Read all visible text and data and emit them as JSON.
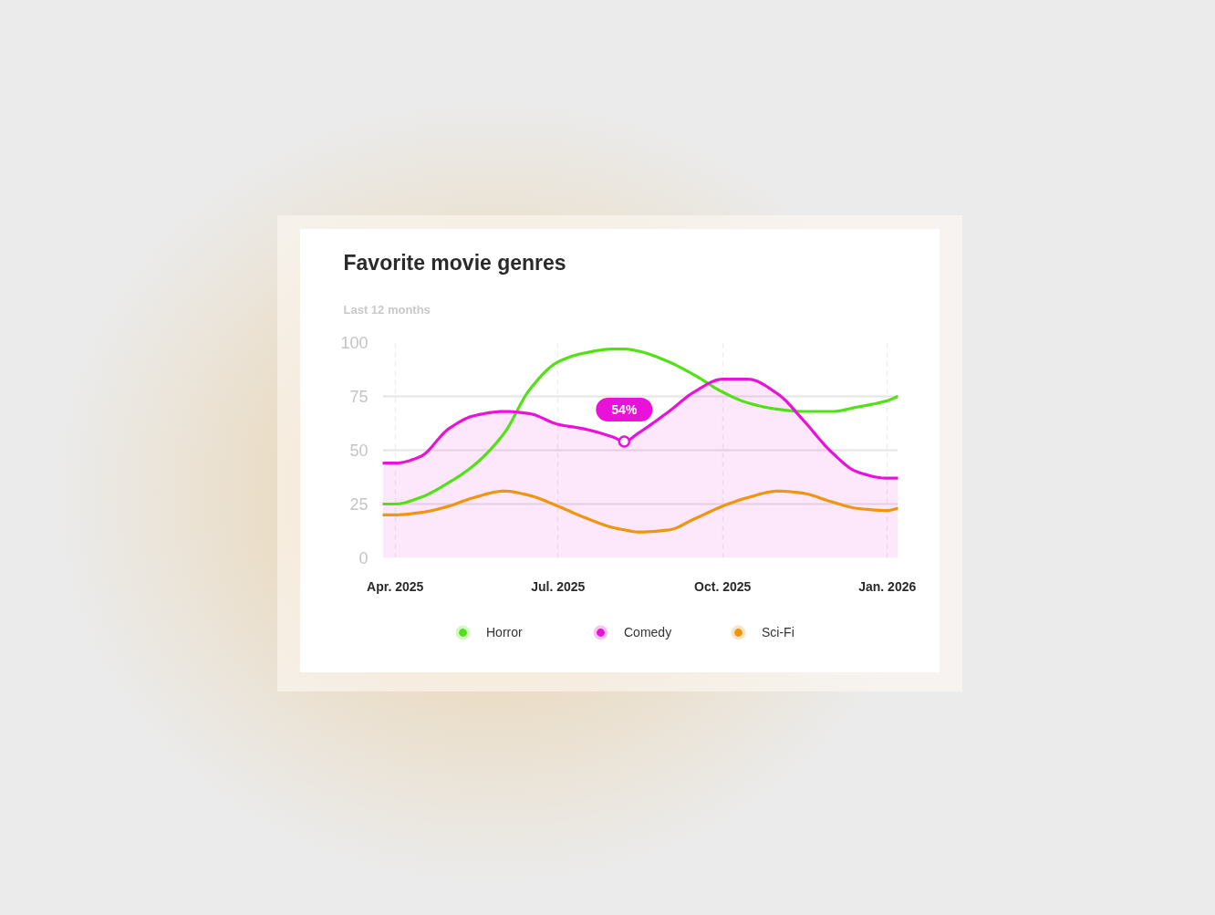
{
  "chart_data": {
    "type": "line",
    "title": "Favorite movie genres",
    "subtitle": "Last 12 months",
    "x": [
      "2025-03-25",
      "2025-04-01",
      "2025-04-15",
      "2025-05-01",
      "2025-05-15",
      "2025-06-01",
      "2025-06-15",
      "2025-07-01",
      "2025-07-15",
      "2025-08-01",
      "2025-08-07",
      "2025-08-15",
      "2025-09-01",
      "2025-09-15",
      "2025-10-01",
      "2025-10-15",
      "2025-11-01",
      "2025-11-15",
      "2025-12-01",
      "2025-12-15",
      "2026-01-01",
      "2026-01-07"
    ],
    "xlim": [
      "2025-03-25",
      "2026-01-07"
    ],
    "xticks": [
      {
        "value": "2025-04-01",
        "label": "Apr. 2025"
      },
      {
        "value": "2025-07-01",
        "label": "Jul. 2025"
      },
      {
        "value": "2025-10-01",
        "label": "Oct. 2025"
      },
      {
        "value": "2026-01-01",
        "label": "Jan. 2026"
      }
    ],
    "ylim": [
      0,
      100
    ],
    "yticks": [
      0,
      25,
      50,
      75,
      100
    ],
    "grid": true,
    "legend": "bottom",
    "series": [
      {
        "name": "Horror",
        "color": "#52e116",
        "values": [
          25,
          25,
          28,
          35,
          43,
          58,
          78,
          91,
          95,
          97,
          97,
          96,
          91,
          85,
          77,
          72,
          69,
          68,
          68,
          70,
          73,
          75
        ]
      },
      {
        "name": "Comedy",
        "type": "area",
        "color": "#e912d9",
        "values": [
          44,
          44,
          47,
          60,
          66,
          68,
          67,
          62,
          60,
          56,
          54,
          58,
          68,
          77,
          83,
          83,
          76,
          64,
          49,
          40,
          37,
          37
        ]
      },
      {
        "name": "Sci-Fi",
        "color": "#f0950f",
        "values": [
          20,
          20,
          21,
          24,
          28,
          31,
          29,
          24,
          19,
          14,
          13,
          12,
          13,
          18,
          24,
          28,
          31,
          30,
          26,
          23,
          22,
          23
        ]
      }
    ],
    "annotations": [
      {
        "text": "54%",
        "x": "2025-08-07",
        "y": 54
      }
    ]
  }
}
